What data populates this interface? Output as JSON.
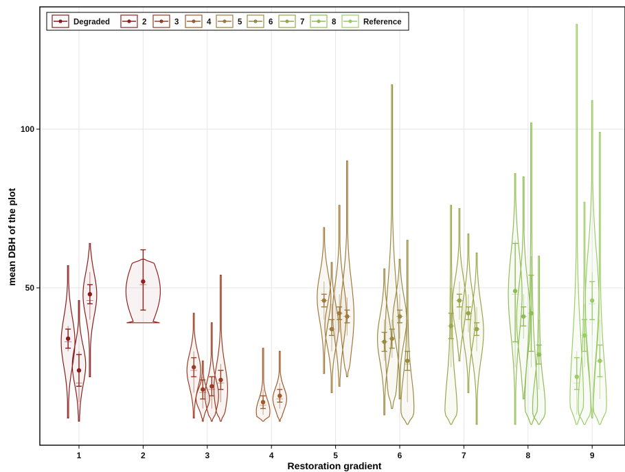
{
  "chart_data": {
    "type": "violin",
    "xlabel": "Restoration gradient",
    "ylabel": "mean DBH of the plot",
    "x_ticks": [
      "1",
      "2",
      "3",
      "4",
      "5",
      "6",
      "7",
      "8",
      "9"
    ],
    "y_ticks": [
      50,
      100
    ],
    "ylim": [
      5,
      133
    ],
    "legend_position": "top-left",
    "legend": [
      {
        "label": "Degraded",
        "color": "#8b1a1a"
      },
      {
        "label": "2",
        "color": "#941f1c"
      },
      {
        "label": "3",
        "color": "#9a3b22"
      },
      {
        "label": "4",
        "color": "#a05a2c"
      },
      {
        "label": "5",
        "color": "#a07a3a"
      },
      {
        "label": "6",
        "color": "#9a8a40"
      },
      {
        "label": "7",
        "color": "#9aa548"
      },
      {
        "label": "8",
        "color": "#8fbd55"
      },
      {
        "label": "Reference",
        "color": "#9ccc68"
      }
    ],
    "violins": [
      {
        "group": 1,
        "offset": -0.17,
        "min": 9,
        "max": 57,
        "q1": 30,
        "q3": 38,
        "median": 33,
        "mean": 34,
        "mean_low": 31,
        "mean_high": 37,
        "mode": 33,
        "color": "#8b1a1a"
      },
      {
        "group": 1,
        "offset": 0.0,
        "min": 8,
        "max": 46,
        "q1": 14,
        "q3": 30,
        "median": 20,
        "mean": 24,
        "mean_low": 19,
        "mean_high": 29,
        "mode": 26,
        "color": "#8b1a1a"
      },
      {
        "group": 1,
        "offset": 0.17,
        "min": 22,
        "max": 64,
        "q1": 40,
        "q3": 55,
        "median": 46,
        "mean": 48,
        "mean_low": 45,
        "mean_high": 51,
        "mode": 48,
        "color": "#8b1a1a"
      },
      {
        "group": 2,
        "offset": 0.0,
        "min": 39,
        "max": 59,
        "q1": 43,
        "q3": 58,
        "median": 51,
        "mean": 52,
        "mean_low": 43,
        "mean_high": 62,
        "mode": 44,
        "color": "#941f1c",
        "flat_top": true
      },
      {
        "group": 3,
        "offset": -0.21,
        "min": 9,
        "max": 42,
        "q1": 17,
        "q3": 30,
        "median": 24,
        "mean": 25,
        "mean_low": 22,
        "mean_high": 28,
        "mode": 24,
        "color": "#9a3b22"
      },
      {
        "group": 3,
        "offset": -0.07,
        "min": 8,
        "max": 27,
        "q1": 12,
        "q3": 22,
        "median": 17,
        "mean": 18,
        "mean_low": 15,
        "mean_high": 21,
        "mode": 15,
        "color": "#9a3b22"
      },
      {
        "group": 3,
        "offset": 0.07,
        "min": 8,
        "max": 39,
        "q1": 12,
        "q3": 22,
        "median": 18,
        "mean": 19,
        "mean_low": 16,
        "mean_high": 22,
        "mode": 16,
        "color": "#9a3b22"
      },
      {
        "group": 3,
        "offset": 0.21,
        "min": 8,
        "max": 54,
        "q1": 14,
        "q3": 26,
        "median": 20,
        "mean": 21,
        "mean_low": 18,
        "mean_high": 24,
        "mode": 18,
        "color": "#9a3b22"
      },
      {
        "group": 4,
        "offset": -0.13,
        "min": 8,
        "max": 31,
        "q1": 10,
        "q3": 18,
        "median": 13,
        "mean": 14,
        "mean_low": 12,
        "mean_high": 16,
        "mode": 11,
        "color": "#a05a2c"
      },
      {
        "group": 4,
        "offset": 0.13,
        "min": 8,
        "max": 30,
        "q1": 12,
        "q3": 20,
        "median": 15,
        "mean": 16,
        "mean_low": 14,
        "mean_high": 18,
        "mode": 15,
        "color": "#a05a2c"
      },
      {
        "group": 5,
        "offset": -0.18,
        "min": 23,
        "max": 69,
        "q1": 40,
        "q3": 52,
        "median": 46,
        "mean": 46,
        "mean_low": 44,
        "mean_high": 48,
        "mode": 47,
        "color": "#a07a3a"
      },
      {
        "group": 5,
        "offset": -0.06,
        "min": 17,
        "max": 58,
        "q1": 30,
        "q3": 45,
        "median": 37,
        "mean": 37,
        "mean_low": 35,
        "mean_high": 40,
        "mode": 38,
        "color": "#a07a3a"
      },
      {
        "group": 5,
        "offset": 0.06,
        "min": 19,
        "max": 76,
        "q1": 36,
        "q3": 48,
        "median": 42,
        "mean": 42,
        "mean_low": 40,
        "mean_high": 44,
        "mode": 42,
        "color": "#a07a3a"
      },
      {
        "group": 5,
        "offset": 0.18,
        "min": 22,
        "max": 90,
        "q1": 35,
        "q3": 47,
        "median": 41,
        "mean": 41,
        "mean_low": 39,
        "mean_high": 43,
        "mode": 41,
        "color": "#a07a3a"
      },
      {
        "group": 6,
        "offset": -0.24,
        "min": 10,
        "max": 56,
        "q1": 27,
        "q3": 40,
        "median": 33,
        "mean": 33,
        "mean_low": 30,
        "mean_high": 36,
        "mode": 34,
        "color": "#9a8a40"
      },
      {
        "group": 6,
        "offset": -0.12,
        "min": 12,
        "max": 114,
        "q1": 28,
        "q3": 40,
        "median": 34,
        "mean": 34,
        "mean_low": 31,
        "mean_high": 37,
        "mode": 34,
        "color": "#9a8a40"
      },
      {
        "group": 6,
        "offset": 0.0,
        "min": 15,
        "max": 59,
        "q1": 34,
        "q3": 48,
        "median": 41,
        "mean": 41,
        "mean_low": 39,
        "mean_high": 43,
        "mode": 40,
        "color": "#9a8a40"
      },
      {
        "group": 6,
        "offset": 0.12,
        "min": 7,
        "max": 65,
        "q1": 14,
        "q3": 40,
        "median": 26,
        "mean": 27,
        "mean_low": 24,
        "mean_high": 30,
        "mode": 12,
        "color": "#9a8a40"
      },
      {
        "group": 7,
        "offset": -0.2,
        "min": 7,
        "max": 76,
        "q1": 25,
        "q3": 50,
        "median": 38,
        "mean": 38,
        "mean_low": 34,
        "mean_high": 42,
        "mode": 10,
        "color": "#9aa548"
      },
      {
        "group": 7,
        "offset": -0.07,
        "min": 27,
        "max": 75,
        "q1": 40,
        "q3": 52,
        "median": 46,
        "mean": 46,
        "mean_low": 44,
        "mean_high": 48,
        "mode": 45,
        "color": "#9aa548"
      },
      {
        "group": 7,
        "offset": 0.07,
        "min": 17,
        "max": 67,
        "q1": 36,
        "q3": 48,
        "median": 42,
        "mean": 42,
        "mean_low": 40,
        "mean_high": 44,
        "mode": 40,
        "color": "#9aa548"
      },
      {
        "group": 7,
        "offset": 0.2,
        "min": 7,
        "max": 61,
        "q1": 30,
        "q3": 44,
        "median": 37,
        "mean": 37,
        "mean_low": 35,
        "mean_high": 39,
        "mode": 36,
        "color": "#9aa548"
      },
      {
        "group": 8,
        "offset": -0.2,
        "min": 7,
        "max": 86,
        "q1": 25,
        "q3": 65,
        "median": 48,
        "mean": 49,
        "mean_low": 33,
        "mean_high": 64,
        "mode": 48,
        "color": "#8fbd55"
      },
      {
        "group": 8,
        "offset": -0.07,
        "min": 15,
        "max": 85,
        "q1": 34,
        "q3": 48,
        "median": 41,
        "mean": 41,
        "mean_low": 38,
        "mean_high": 44,
        "mode": 40,
        "color": "#8fbd55"
      },
      {
        "group": 8,
        "offset": 0.05,
        "min": 7,
        "max": 102,
        "q1": 25,
        "q3": 60,
        "median": 42,
        "mean": 42,
        "mean_low": 30,
        "mean_high": 54,
        "mode": 12,
        "color": "#8fbd55"
      },
      {
        "group": 8,
        "offset": 0.17,
        "min": 7,
        "max": 60,
        "q1": 18,
        "q3": 40,
        "median": 29,
        "mean": 29,
        "mean_low": 26,
        "mean_high": 32,
        "mode": 12,
        "color": "#8fbd55"
      },
      {
        "group": 9,
        "offset": -0.24,
        "min": 7,
        "max": 133,
        "q1": 10,
        "q3": 30,
        "median": 20,
        "mean": 22,
        "mean_low": 18,
        "mean_high": 28,
        "mode": 12,
        "color": "#9ccc68"
      },
      {
        "group": 9,
        "offset": -0.12,
        "min": 7,
        "max": 77,
        "q1": 25,
        "q3": 45,
        "median": 35,
        "mean": 35,
        "mean_low": 30,
        "mean_high": 40,
        "mode": 12,
        "color": "#9ccc68"
      },
      {
        "group": 9,
        "offset": 0.0,
        "min": 9,
        "max": 109,
        "q1": 35,
        "q3": 55,
        "median": 45,
        "mean": 46,
        "mean_low": 40,
        "mean_high": 52,
        "mode": 45,
        "color": "#9ccc68"
      },
      {
        "group": 9,
        "offset": 0.12,
        "min": 7,
        "max": 99,
        "q1": 15,
        "q3": 40,
        "median": 27,
        "mean": 27,
        "mean_low": 22,
        "mean_high": 32,
        "mode": 12,
        "color": "#9ccc68"
      }
    ]
  }
}
